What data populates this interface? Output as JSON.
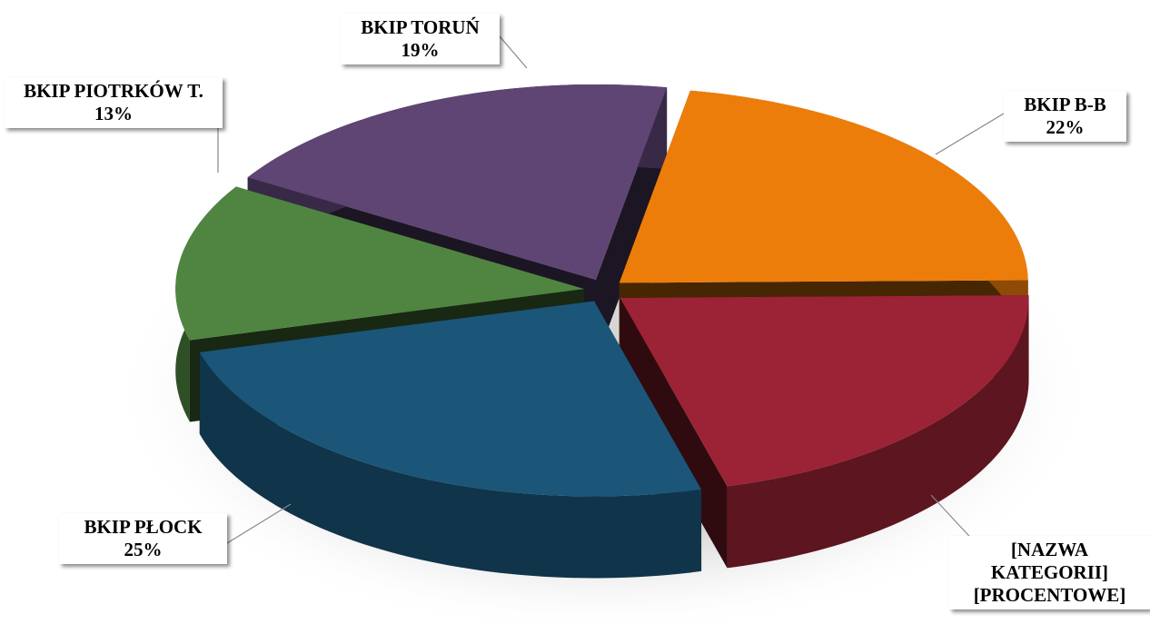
{
  "chart_data": {
    "type": "pie",
    "three_d": true,
    "exploded": true,
    "categories": [
      "BKIP B-B",
      "[NAZWA KATEGORII]",
      "BKIP PŁOCK",
      "BKIP PIOTRKÓW T.",
      "BKIP TORUŃ"
    ],
    "values": [
      22,
      21,
      25,
      13,
      19
    ],
    "value_labels": [
      "22%",
      "[PROCENTOWE]",
      "25%",
      "13%",
      "19%"
    ],
    "colors": [
      "#ed7d0a",
      "#9b2335",
      "#1b5679",
      "#4f8540",
      "#5e4574"
    ]
  }
}
